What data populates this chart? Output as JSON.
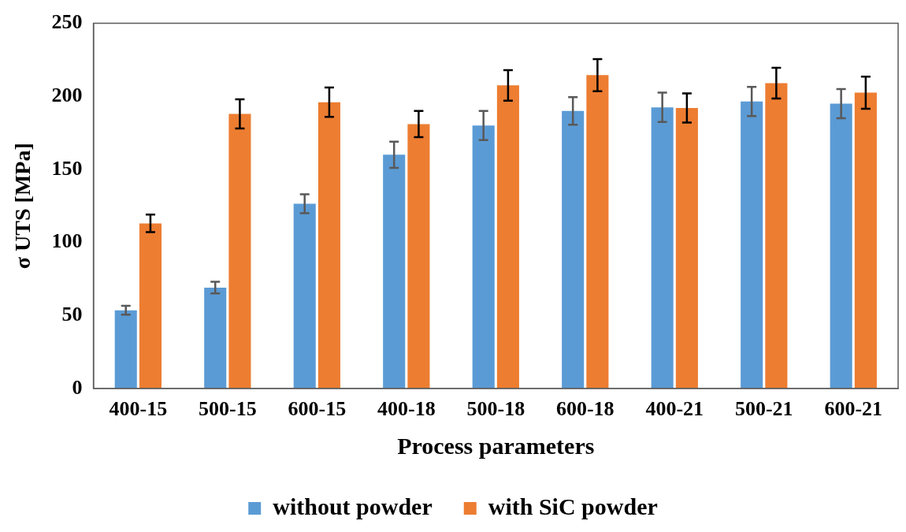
{
  "chart_data": {
    "type": "bar",
    "xlabel": "Process parameters",
    "ylabel": "σ UTS [MPa]",
    "categories": [
      "400-15",
      "500-15",
      "600-15",
      "400-18",
      "500-18",
      "600-18",
      "400-21",
      "500-21",
      "600-21"
    ],
    "series": [
      {
        "name": "without powder",
        "color": "#5b9bd5",
        "values": [
          53.5,
          69,
          126.5,
          160,
          180,
          190,
          192.5,
          196.5,
          195
        ],
        "errors": [
          3,
          4,
          6.5,
          9,
          10,
          9.5,
          10,
          10,
          10
        ]
      },
      {
        "name": "with SiC powder",
        "color": "#ed7d31",
        "values": [
          113,
          188,
          196,
          181,
          207.5,
          214.5,
          192,
          209,
          202.5
        ],
        "errors": [
          6,
          10,
          10,
          9,
          10.5,
          11,
          10,
          10.5,
          11
        ]
      }
    ],
    "ylim": [
      0,
      250
    ],
    "yticks": [
      0,
      50,
      100,
      150,
      200,
      250
    ],
    "grid": false,
    "legend": "bottom"
  }
}
